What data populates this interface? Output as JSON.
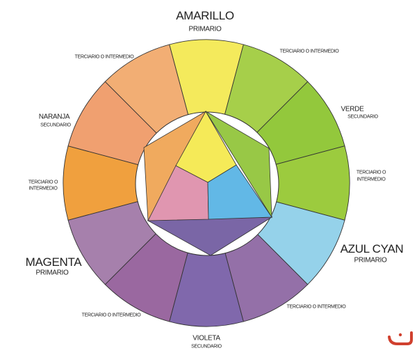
{
  "labels": {
    "amarillo": {
      "name": "AMARILLO",
      "type": "PRIMARIO"
    },
    "verde": {
      "name": "VERDE",
      "type": "SECUNDARIO"
    },
    "azul_cyan": {
      "name": "AZUL CYAN",
      "type": "PRIMARIO"
    },
    "violeta": {
      "name": "VIOLETA",
      "type": "SECUNDARIO"
    },
    "magenta": {
      "name": "MAGENTA",
      "type": "PRIMARIO"
    },
    "naranja": {
      "name": "NARANJA",
      "type": "SECUNDARIO"
    },
    "terciario_top_left": "TERCIARIO O INTERMEDIO",
    "terciario_top_right": "TERCIARIO O INTERMEDIO",
    "terciario_right": {
      "line1": "TERCIARIO O",
      "line2": "INTERMEDIO"
    },
    "terciario_left": {
      "line1": "TERCIARIO O",
      "line2": "INTERMEDIO"
    },
    "terciario_bottom_right": "TERCIARIO O INTERMEDIO",
    "terciario_bottom_left": "TERCIARIO O INTERMEDIO"
  },
  "wheel_segments": [
    {
      "name": "yellow",
      "color": "#f4ea5c"
    },
    {
      "name": "yellow-green",
      "color": "#a6cf4a"
    },
    {
      "name": "green",
      "color": "#93c83c"
    },
    {
      "name": "blue-green",
      "color": "#9ccb3e"
    },
    {
      "name": "cyan",
      "color": "#95d2ea"
    },
    {
      "name": "blue-violet",
      "color": "#9470a8"
    },
    {
      "name": "violet",
      "color": "#8068ac"
    },
    {
      "name": "red-violet",
      "color": "#9a68a0"
    },
    {
      "name": "magenta",
      "color": "#a680ac"
    },
    {
      "name": "red-orange",
      "color": "#f0a03e"
    },
    {
      "name": "orange",
      "color": "#f0a070"
    },
    {
      "name": "yellow-orange",
      "color": "#f2ae74"
    }
  ],
  "center": {
    "primaries": {
      "yellow": "#f5ea58",
      "magenta": "#e096b0",
      "cyan": "#62b8e6"
    },
    "secondaries": {
      "orange": "#f0aa5e",
      "green": "#98c846",
      "violet": "#7a66a6"
    }
  },
  "logo": {
    "color": "#d0402e"
  }
}
